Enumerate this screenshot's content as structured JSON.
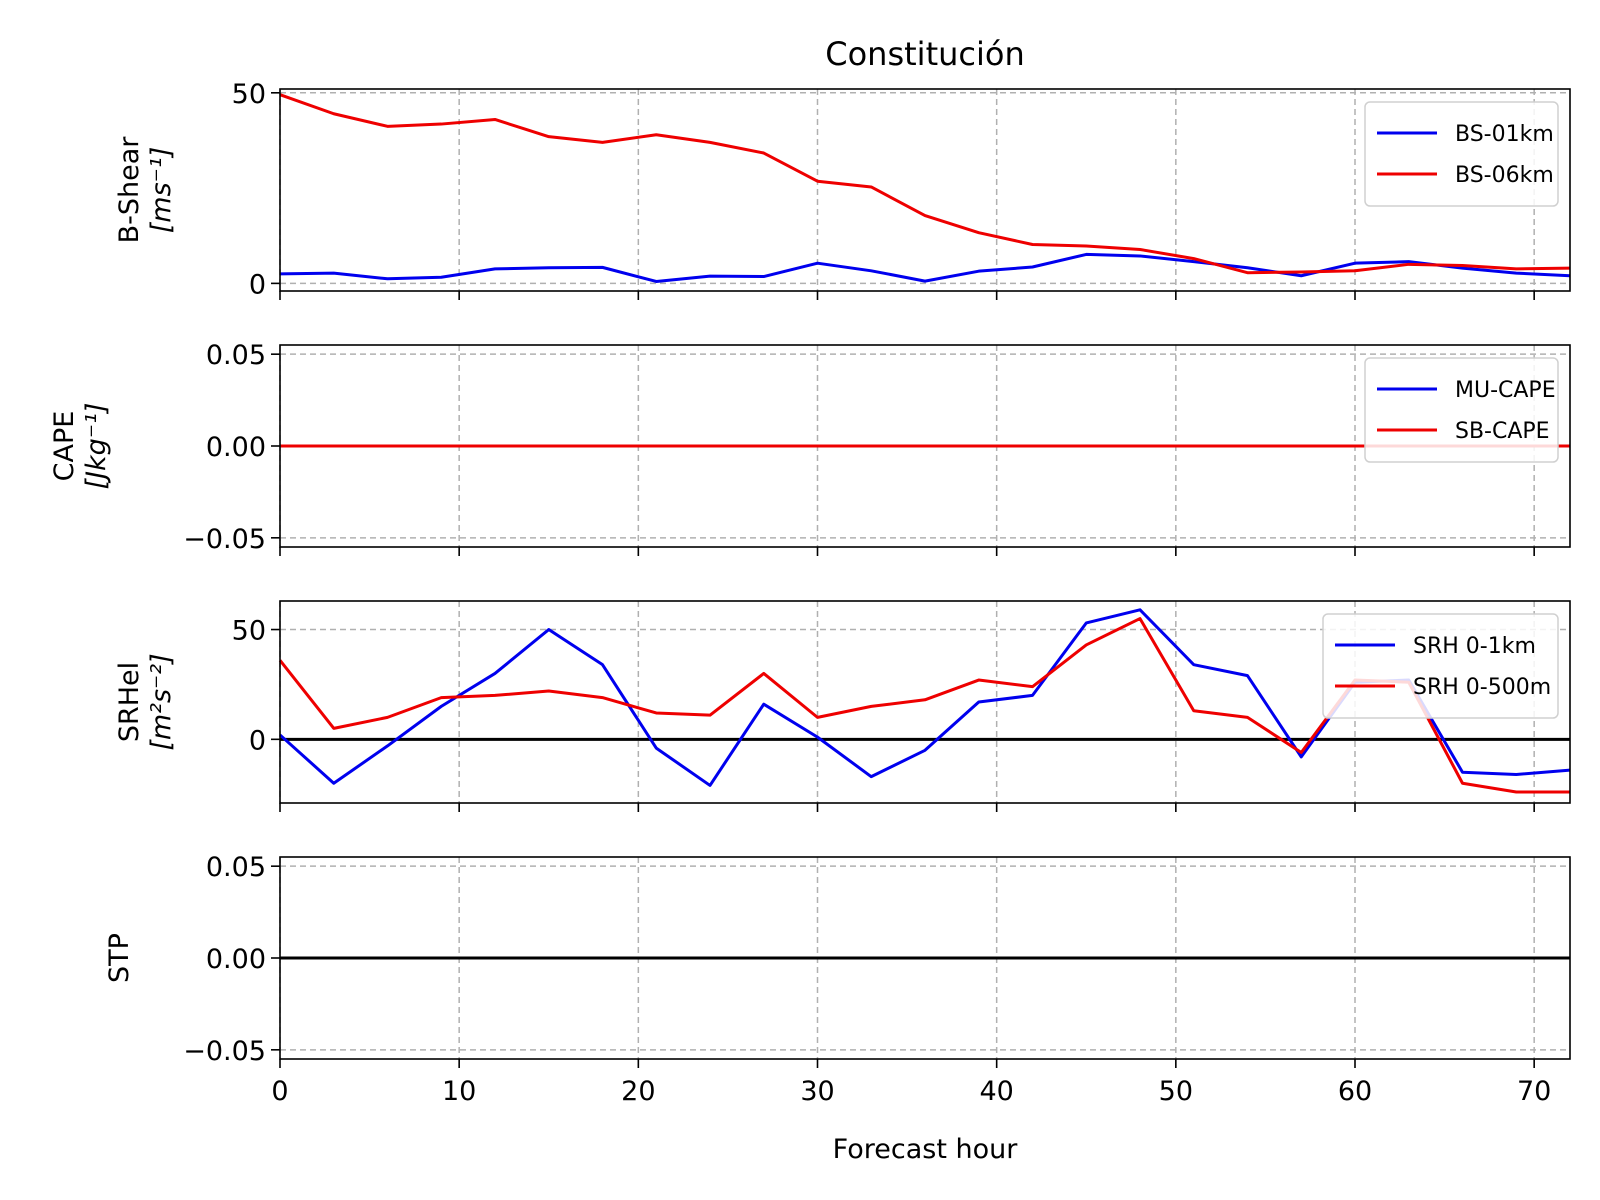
{
  "figure_title": "Constitución",
  "xlabel": "Forecast hour",
  "colors": {
    "blue": "#0000ee",
    "red": "#ee0000",
    "grid": "#b0b0b0",
    "zero": "#000000"
  },
  "chart_data": [
    {
      "type": "line",
      "name": "bshear",
      "ylabel_line1": "B-Shear",
      "ylabel_line2": "[ms⁻¹]",
      "xlim": [
        0,
        72
      ],
      "ylim": [
        -2,
        51
      ],
      "xticks": [
        0,
        10,
        20,
        30,
        40,
        50,
        60,
        70
      ],
      "yticks": [
        0,
        50
      ],
      "ytick_labels": [
        "0",
        "50"
      ],
      "grid": true,
      "zero_line": false,
      "legend": "top-right",
      "x": [
        0,
        3,
        6,
        9,
        12,
        15,
        18,
        21,
        24,
        27,
        30,
        33,
        36,
        39,
        42,
        45,
        48,
        51,
        54,
        57,
        60,
        63,
        66,
        69,
        72
      ],
      "series": [
        {
          "name": "BS-01km",
          "color": "blue",
          "values": [
            2.5,
            2.7,
            1.2,
            1.6,
            3.8,
            4.1,
            4.2,
            0.5,
            1.9,
            1.8,
            5.3,
            3.3,
            0.6,
            3.2,
            4.3,
            7.6,
            7.2,
            5.7,
            4.1,
            2.0,
            5.3,
            5.7,
            4.0,
            2.7,
            2.0
          ]
        },
        {
          "name": "BS-06km",
          "color": "red",
          "values": [
            49.5,
            44.5,
            41.2,
            41.8,
            43.0,
            38.5,
            37.0,
            39.0,
            37.0,
            34.2,
            26.8,
            25.3,
            17.8,
            13.3,
            10.2,
            9.8,
            8.9,
            6.5,
            2.8,
            3.0,
            3.3,
            5.0,
            4.7,
            3.8,
            4.0
          ]
        }
      ]
    },
    {
      "type": "line",
      "name": "cape",
      "ylabel_line1": "CAPE",
      "ylabel_line2": "[Jkg⁻¹]",
      "xlim": [
        0,
        72
      ],
      "ylim": [
        -0.055,
        0.055
      ],
      "xticks": [
        0,
        10,
        20,
        30,
        40,
        50,
        60,
        70
      ],
      "yticks": [
        -0.05,
        0,
        0.05
      ],
      "ytick_labels": [
        "−0.05",
        "0.00",
        "0.05"
      ],
      "grid": true,
      "zero_line": false,
      "legend": "top-right",
      "x": [
        0,
        72
      ],
      "series": [
        {
          "name": "MU-CAPE",
          "color": "blue",
          "values": [
            0,
            0
          ]
        },
        {
          "name": "SB-CAPE",
          "color": "red",
          "values": [
            0,
            0
          ]
        }
      ]
    },
    {
      "type": "line",
      "name": "srhel",
      "ylabel_line1": "SRHel",
      "ylabel_line2": "[m²s⁻²]",
      "xlim": [
        0,
        72
      ],
      "ylim": [
        -29,
        63
      ],
      "xticks": [
        0,
        10,
        20,
        30,
        40,
        50,
        60,
        70
      ],
      "yticks": [
        0,
        50
      ],
      "ytick_labels": [
        "0",
        "50"
      ],
      "grid": true,
      "zero_line": true,
      "legend": "top-right",
      "x": [
        0,
        3,
        6,
        9,
        12,
        15,
        18,
        21,
        24,
        27,
        30,
        33,
        36,
        39,
        42,
        45,
        48,
        51,
        54,
        57,
        60,
        63,
        66,
        69,
        72
      ],
      "series": [
        {
          "name": "SRH 0-1km",
          "color": "blue",
          "values": [
            2,
            -20,
            -3,
            15,
            30,
            50,
            34,
            -4,
            -21,
            16,
            1,
            -17,
            -5,
            17,
            20,
            53,
            59,
            34,
            29,
            -8,
            26,
            27,
            -15,
            -16,
            -14
          ]
        },
        {
          "name": "SRH 0-500m",
          "color": "red",
          "values": [
            36,
            5,
            10,
            19,
            20,
            22,
            19,
            12,
            11,
            30,
            10,
            15,
            18,
            27,
            24,
            43,
            55,
            13,
            10,
            -6,
            27,
            26,
            -20,
            -24,
            -24
          ]
        }
      ]
    },
    {
      "type": "line",
      "name": "stp",
      "ylabel_line1": "STP",
      "ylabel_line2": "",
      "xlim": [
        0,
        72
      ],
      "ylim": [
        -0.055,
        0.055
      ],
      "xticks": [
        0,
        10,
        20,
        30,
        40,
        50,
        60,
        70
      ],
      "xtick_labels": [
        "0",
        "10",
        "20",
        "30",
        "40",
        "50",
        "60",
        "70"
      ],
      "yticks": [
        -0.05,
        0,
        0.05
      ],
      "ytick_labels": [
        "−0.05",
        "0.00",
        "0.05"
      ],
      "grid": true,
      "zero_line": true,
      "legend": "none",
      "series": []
    }
  ]
}
